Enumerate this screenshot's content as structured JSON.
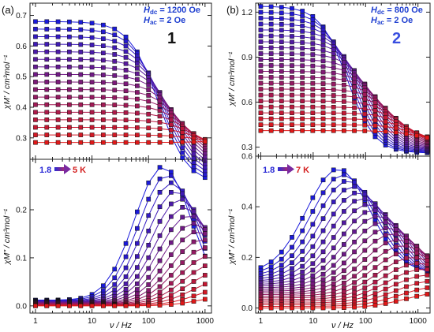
{
  "colors": {
    "low_T": "#1a1adc",
    "high_T": "#e01818",
    "cond_text": "#1f3fd0",
    "label2": "#3a4fe0",
    "arrow_low": "#2b2bd6",
    "arrow_high": "#d42020"
  },
  "figure": {
    "panel_a": {
      "label": "(a)",
      "compound": "1",
      "cond_line1": "H",
      "cond_line1_sub": "dc",
      "cond_line1_value": " = 1200 Oe",
      "cond_line2": "H",
      "cond_line2_sub": "ac",
      "cond_line2_value": " = 2 Oe",
      "temp_low": "1.8",
      "temp_high": "5 K",
      "top_ylabel": "χM' / cm³mol⁻¹",
      "bottom_ylabel": "χM\" / cm³mol⁻¹",
      "xlabel": "ν / Hz"
    },
    "panel_b": {
      "label": "(b)",
      "compound": "2",
      "cond_line1": "H",
      "cond_line1_sub": "dc",
      "cond_line1_value": " = 800 Oe",
      "cond_line2": "H",
      "cond_line2_sub": "ac",
      "cond_line2_value": " = 2 Oe",
      "temp_low": "1.8",
      "temp_high": "7 K",
      "top_ylabel": "χM' / cm³mol⁻¹",
      "bottom_ylabel": "χM\" / cm³mol⁻¹",
      "xlabel": "ν / Hz"
    }
  },
  "chart_data": [
    {
      "id": "a-top",
      "type": "line",
      "xscale": "log",
      "xlim": [
        0.8,
        1300
      ],
      "ylim": [
        0.23,
        0.74
      ],
      "xticks": [
        1,
        10,
        100,
        1000
      ],
      "xticklabels": [
        "1",
        "10",
        "100",
        "1000"
      ],
      "yticks": [
        0.3,
        0.4,
        0.5,
        0.6,
        0.7
      ],
      "yticklabels": [
        "0.3",
        "0.4",
        "0.5",
        "0.6",
        "0.7"
      ],
      "n_curves": 17,
      "x_points_per_decade": 5,
      "x_range": [
        1,
        1000
      ],
      "curve_params": {
        "chi_s": [
          0.29,
          0.15
        ],
        "chi_t": [
          0.285,
          0.68
        ],
        "fc": [
          900,
          150
        ]
      },
      "ylabel_hint": "χM'"
    },
    {
      "id": "a-bottom",
      "type": "line",
      "xscale": "log",
      "xlim": [
        0.8,
        1300
      ],
      "ylim": [
        -0.015,
        0.305
      ],
      "xticks": [
        1,
        10,
        100,
        1000
      ],
      "xticklabels": [
        "1",
        "10",
        "100",
        "1000"
      ],
      "yticks": [
        0.0,
        0.1,
        0.2
      ],
      "yticklabels": [
        "0.0",
        "0.1",
        "0.2"
      ],
      "n_curves": 17,
      "x_points_per_decade": 5,
      "x_range": [
        1,
        1000
      ],
      "curve_params": {
        "amp": [
          0.29,
          0.02
        ],
        "fc": [
          180,
          3000
        ],
        "base": [
          0.012,
          0.0
        ],
        "width": [
          0.5,
          0.55
        ]
      }
    },
    {
      "id": "b-top",
      "type": "line",
      "xscale": "log",
      "xlim": [
        0.8,
        1700
      ],
      "ylim": [
        0.24,
        1.26
      ],
      "xticks": [
        1,
        10,
        100,
        1000
      ],
      "xticklabels": [
        "1",
        "10",
        "100",
        "1000"
      ],
      "yticks": [
        0.3,
        0.6,
        0.9,
        1.2
      ],
      "yticklabels": [
        "0.3",
        "0.6",
        "0.9",
        "1.2"
      ],
      "n_curves": 22,
      "x_points_per_decade": 5,
      "x_range": [
        1,
        1500
      ],
      "curve_params": {
        "chi_s": [
          0.34,
          0.26
        ],
        "chi_t": [
          0.41,
          1.24
        ],
        "fc": [
          1000,
          45
        ]
      }
    },
    {
      "id": "b-bottom",
      "type": "line",
      "xscale": "log",
      "xlim": [
        0.8,
        1700
      ],
      "ylim": [
        -0.02,
        0.6
      ],
      "xticks": [
        1,
        10,
        100,
        1000
      ],
      "xticklabels": [
        "1",
        "10",
        "100",
        "1000"
      ],
      "yticks": [
        0.0,
        0.2,
        0.4,
        0.6
      ],
      "yticklabels": [
        "0.0",
        "0.2",
        "0.4",
        "0.6"
      ],
      "n_curves": 22,
      "x_points_per_decade": 5,
      "x_range": [
        1,
        1500
      ],
      "curve_params": {
        "amp": [
          0.55,
          0.06
        ],
        "fc": [
          30,
          3000
        ],
        "base": [
          0.14,
          0.0
        ],
        "width": [
          0.6,
          0.7
        ]
      }
    }
  ]
}
